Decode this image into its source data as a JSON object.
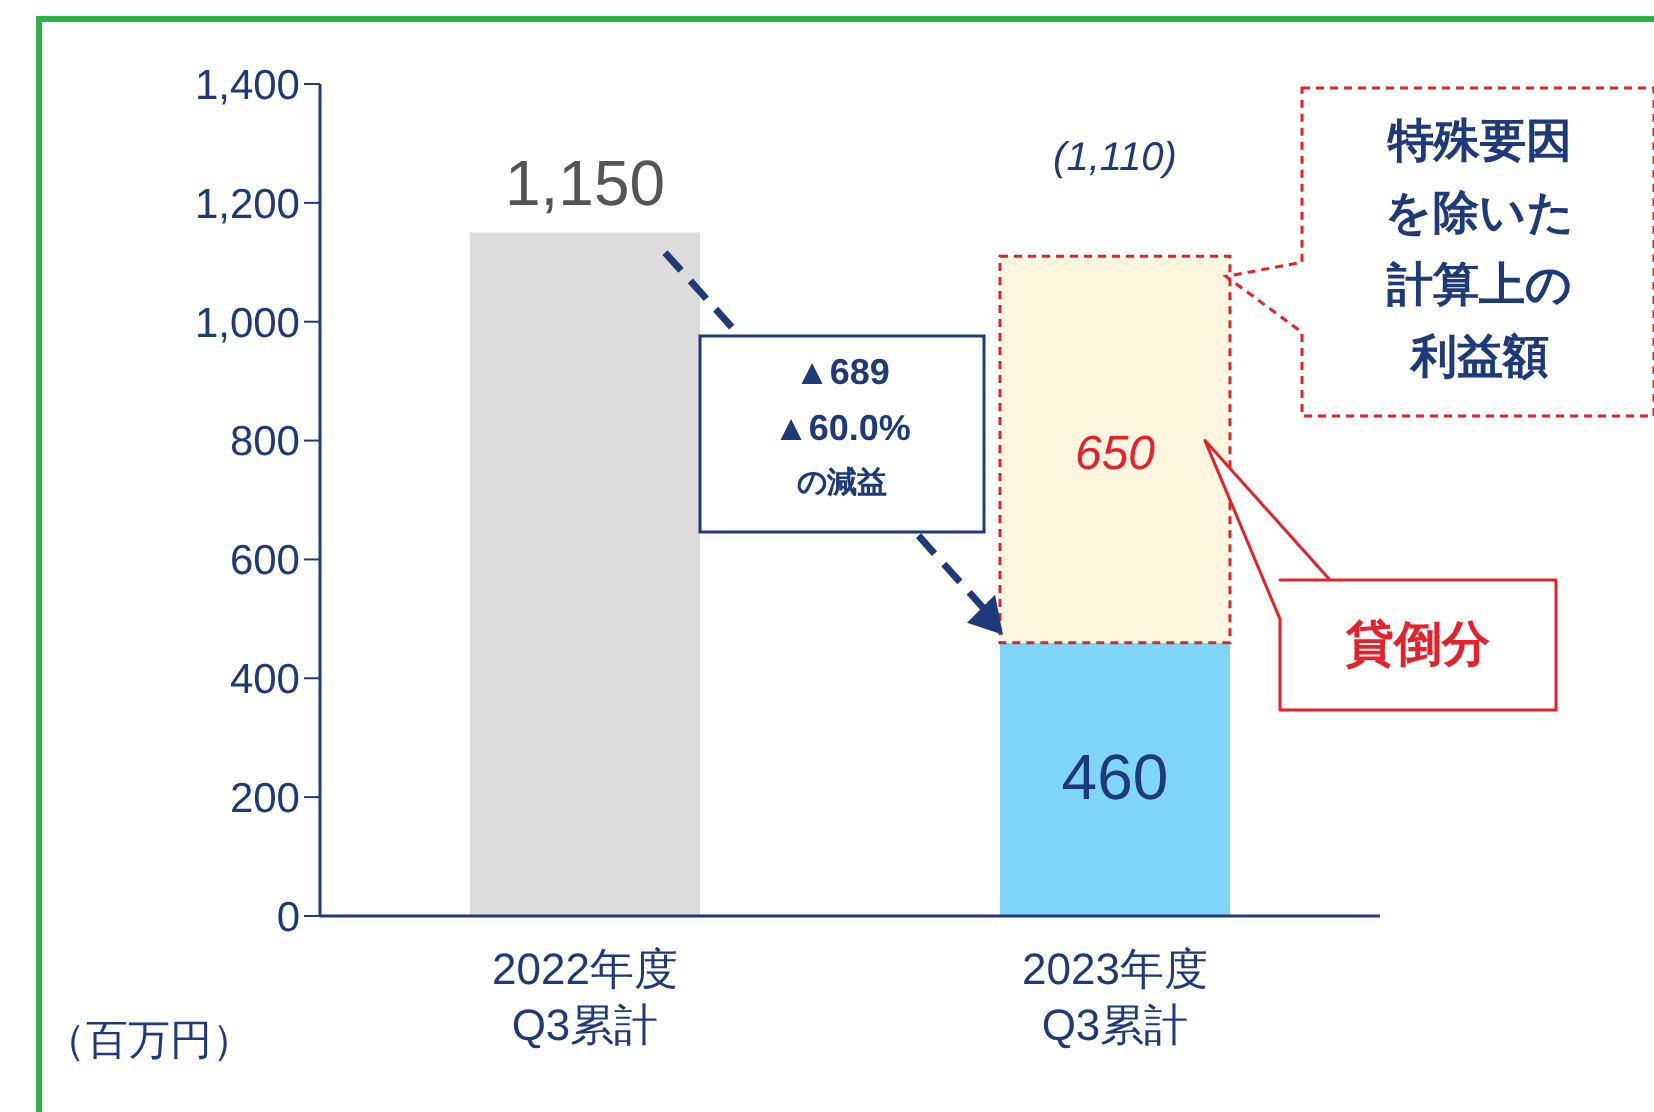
{
  "chart_data": {
    "type": "bar",
    "stacked": true,
    "categories": [
      "2022年度\nQ3累計",
      "2023年度\nQ3累計"
    ],
    "series": [
      {
        "colors": [
          "#dcdcdc",
          "#7fd6f7"
        ],
        "values": [
          1150,
          460
        ],
        "value_labels": [
          "1,150",
          "460"
        ]
      },
      {
        "color": "#fff6e0",
        "values": [
          null,
          650
        ],
        "value_labels": [
          null,
          "650"
        ]
      }
    ],
    "totals": [
      null,
      "(1,110)"
    ],
    "ylim": [
      0,
      1400
    ],
    "yticks": [
      {
        "value": 0,
        "label": "0"
      },
      {
        "value": 200,
        "label": "200"
      },
      {
        "value": 400,
        "label": "400"
      },
      {
        "value": 600,
        "label": "600"
      },
      {
        "value": 800,
        "label": "800"
      },
      {
        "value": 1000,
        "label": "1,000"
      },
      {
        "value": 1200,
        "label": "1,200"
      },
      {
        "value": 1400,
        "label": "1,400"
      }
    ],
    "ylabel": "（百万円）",
    "annotations": [
      "▲689\n▲60.0%\nの減益",
      "特殊要因を除いた計算上の利益額",
      "貸倒分"
    ]
  }
}
